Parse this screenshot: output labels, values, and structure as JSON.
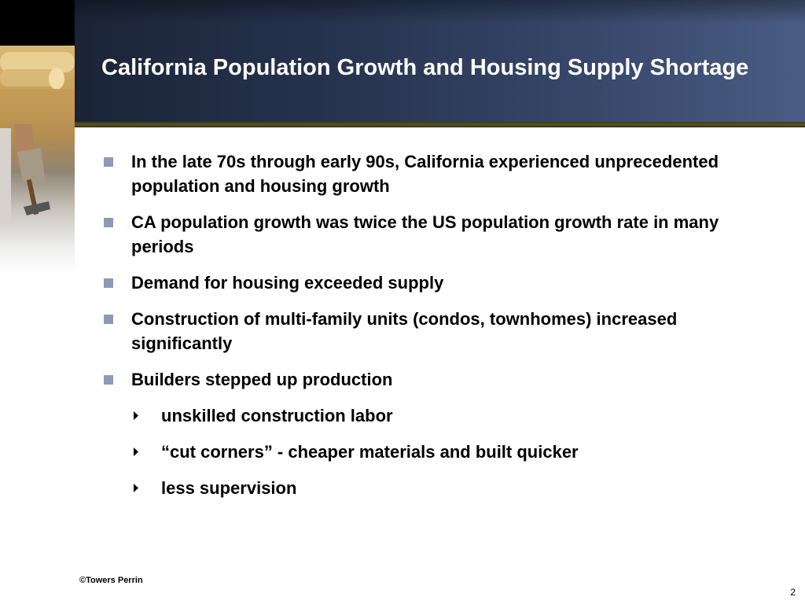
{
  "slide": {
    "title": "California Population Growth and Housing Supply Shortage",
    "bullets": [
      "In the late 70s through early 90s, California experienced unprecedented population and housing growth",
      "CA population growth was twice the US population growth rate in many periods",
      "Demand for housing exceeded supply",
      "Construction of multi-family units (condos, townhomes) increased significantly",
      "Builders stepped up production"
    ],
    "sub_bullets": [
      "unskilled construction labor",
      "“cut corners” - cheaper materials and built quicker",
      "less supervision"
    ]
  },
  "footer": {
    "copyright": "©Towers Perrin",
    "page_number": "2"
  },
  "colors": {
    "header_dark": "#1b2437",
    "header_light": "#4a5c83",
    "rule_olive": "#5a5420",
    "bullet_square": "#8e9ab3"
  },
  "icons": {
    "bullet": "square-bullet-icon",
    "sub_bullet": "arrow-bullet-icon"
  }
}
